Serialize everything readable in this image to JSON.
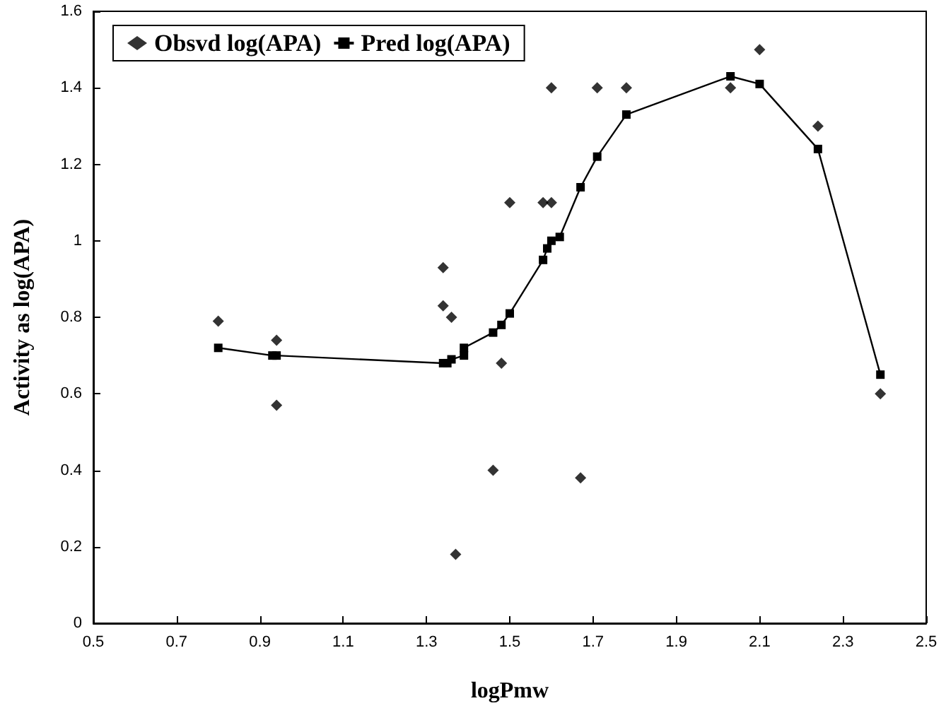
{
  "chart_data": {
    "type": "scatter",
    "xlabel": "logPmw",
    "ylabel": "Activity as log(APA)",
    "xlim": [
      0.5,
      2.5
    ],
    "xticks": [
      0.5,
      0.7,
      0.9,
      1.1,
      1.3,
      1.5,
      1.7,
      1.9,
      2.1,
      2.3,
      2.5
    ],
    "ylim": [
      0,
      1.6
    ],
    "yticks": [
      0,
      0.2,
      0.4,
      0.6,
      0.8,
      1,
      1.2,
      1.4,
      1.6
    ],
    "grid": false,
    "legend": "top left",
    "series": [
      {
        "name": "Obsvd log(APA)",
        "marker": "diamond",
        "color": "#000000",
        "x": [
          0.8,
          0.94,
          0.94,
          1.34,
          1.34,
          1.36,
          1.37,
          1.46,
          1.48,
          1.5,
          1.58,
          1.6,
          1.6,
          1.67,
          1.71,
          1.78,
          2.03,
          2.1,
          2.24,
          2.39
        ],
        "values": [
          0.79,
          0.74,
          0.57,
          0.83,
          0.93,
          0.8,
          0.18,
          0.4,
          0.68,
          1.1,
          1.1,
          1.1,
          1.4,
          0.38,
          1.4,
          1.4,
          1.4,
          1.5,
          1.3,
          0.6
        ]
      },
      {
        "name": "Pred log(APA)",
        "type": "line",
        "marker": "square",
        "line_style": "solid",
        "color": "#000000",
        "x": [
          0.8,
          0.93,
          0.94,
          1.34,
          1.35,
          1.36,
          1.39,
          1.39,
          1.46,
          1.48,
          1.5,
          1.58,
          1.59,
          1.6,
          1.62,
          1.67,
          1.71,
          1.78,
          2.03,
          2.1,
          2.24,
          2.39
        ],
        "values": [
          0.72,
          0.7,
          0.7,
          0.68,
          0.68,
          0.69,
          0.7,
          0.72,
          0.76,
          0.78,
          0.81,
          0.95,
          0.98,
          1.0,
          1.01,
          1.14,
          1.22,
          1.33,
          1.43,
          1.41,
          1.24,
          0.65
        ]
      }
    ]
  }
}
